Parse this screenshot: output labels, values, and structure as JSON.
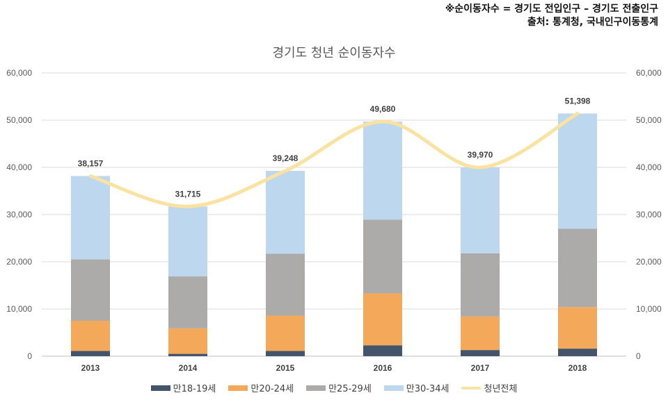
{
  "note": {
    "line1": "※순이동자수 = 경기도 전입인구 – 경기도 전출인구",
    "line2": "출처: 통계청, 국내인구이동통계"
  },
  "chart_data": {
    "type": "bar",
    "stacked": true,
    "title": "경기도 청년 순이동자수",
    "categories": [
      "2013",
      "2014",
      "2015",
      "2016",
      "2017",
      "2018"
    ],
    "ylim": [
      0,
      60000
    ],
    "yticks": [
      "0",
      "10,000",
      "20,000",
      "30,000",
      "40,000",
      "50,000",
      "60,000"
    ],
    "y2lim": [
      0,
      60000
    ],
    "y2ticks": [
      "0",
      "10,000",
      "20,000",
      "30,000",
      "40,000",
      "50,000",
      "60,000"
    ],
    "grid": true,
    "legend_position": "bottom",
    "series": [
      {
        "name": "만18-19세",
        "type": "bar",
        "color": "#44546A",
        "values": [
          1100,
          500,
          1100,
          2300,
          1300,
          1600
        ]
      },
      {
        "name": "만20-24세",
        "type": "bar",
        "color": "#F4A95A",
        "values": [
          6400,
          5400,
          7500,
          11000,
          7100,
          8800
        ]
      },
      {
        "name": "만25-29세",
        "type": "bar",
        "color": "#ADAAAA",
        "values": [
          13000,
          11000,
          13100,
          15600,
          13400,
          16600
        ]
      },
      {
        "name": "만30-34세",
        "type": "bar",
        "color": "#BDD7EE",
        "values": [
          17657,
          14815,
          17548,
          20780,
          18170,
          24398
        ]
      },
      {
        "name": "청년전체",
        "type": "line",
        "color": "#FAE3A0",
        "values": [
          38157,
          31715,
          39248,
          49680,
          39970,
          51398
        ],
        "labels": [
          "38,157",
          "31,715",
          "39,248",
          "49,680",
          "39,970",
          "51,398"
        ]
      }
    ]
  }
}
